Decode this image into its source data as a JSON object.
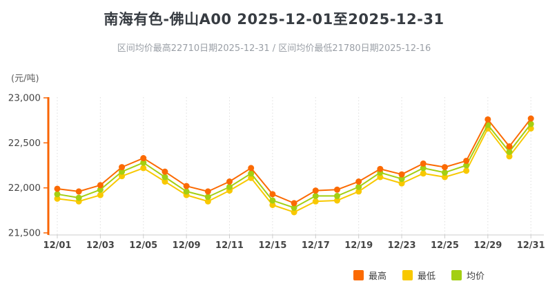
{
  "title": "南海有色-佛山A00 2025-12-01至2025-12-31",
  "subtitle": "区间均价最高22710日期2025-12-31 / 区间均价最低21780日期2025-12-16",
  "y_unit_label": "(元/吨)",
  "colors": {
    "high": "#fb6a02",
    "low": "#f8c800",
    "avg": "#a3cf13",
    "axis_line": "#f96402",
    "x_axis_line": "#cccccc",
    "grid_line": "#dddddd",
    "tick_text": "#444444",
    "title_text": "#373c42",
    "subtitle_text": "#9a9fa6"
  },
  "legend": {
    "items": [
      {
        "key": "high",
        "label": "最高",
        "color": "#fb6a02"
      },
      {
        "key": "low",
        "label": "最低",
        "color": "#f8c800"
      },
      {
        "key": "avg",
        "label": "均价",
        "color": "#a3cf13"
      }
    ]
  },
  "chart_data": {
    "type": "line",
    "title": "南海有色-佛山A00 2025-12-01至2025-12-31",
    "subtitle": "区间均价最高22710日期2025-12-31 / 区间均价最低21780日期2025-12-16",
    "ylabel": "(元/吨)",
    "ylim": [
      21500,
      23000
    ],
    "y_ticks": [
      23000,
      22500,
      22000,
      21500
    ],
    "y_tick_labels": [
      "23,000",
      "22,500",
      "22,000",
      "21,500"
    ],
    "grid": "vertical-dotted",
    "legend_position": "bottom-right",
    "x": [
      "12/01",
      "12/02",
      "12/03",
      "12/04",
      "12/05",
      "12/08",
      "12/09",
      "12/10",
      "12/11",
      "12/12",
      "12/15",
      "12/16",
      "12/17",
      "12/18",
      "12/19",
      "12/22",
      "12/23",
      "12/24",
      "12/25",
      "12/26",
      "12/29",
      "12/30",
      "12/31"
    ],
    "x_tick_labels": [
      "12/01",
      "12/03",
      "12/05",
      "12/09",
      "12/11",
      "12/15",
      "12/17",
      "12/19",
      "12/23",
      "12/25",
      "12/29",
      "12/31"
    ],
    "series": [
      {
        "key": "low",
        "name": "最低",
        "color": "#f8c800",
        "values": [
          21880,
          21850,
          21920,
          22130,
          22220,
          22070,
          21920,
          21850,
          21970,
          22110,
          21810,
          21730,
          21850,
          21860,
          21960,
          22120,
          22050,
          22160,
          22120,
          22190,
          22660,
          22350,
          22660
        ]
      },
      {
        "key": "avg",
        "name": "均价",
        "color": "#a3cf13",
        "values": [
          21930,
          21890,
          21980,
          22180,
          22280,
          22120,
          21960,
          21900,
          22010,
          22160,
          21860,
          21780,
          21910,
          21910,
          22010,
          22170,
          22100,
          22220,
          22170,
          22250,
          22700,
          22400,
          22710
        ]
      },
      {
        "key": "high",
        "name": "最高",
        "color": "#fb6a02",
        "values": [
          21990,
          21960,
          22030,
          22230,
          22330,
          22180,
          22020,
          21960,
          22070,
          22220,
          21930,
          21830,
          21970,
          21980,
          22070,
          22210,
          22150,
          22270,
          22230,
          22300,
          22760,
          22460,
          22770
        ]
      }
    ]
  }
}
